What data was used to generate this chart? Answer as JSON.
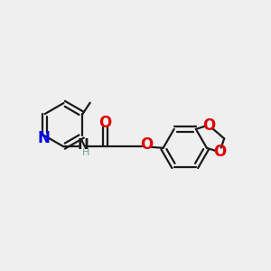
{
  "bg_color": "#efefef",
  "bond_color": "#1a1a1a",
  "N_color": "#0000ee",
  "O_color": "#dd0000",
  "H_color": "#7a9e9f",
  "line_width": 1.6,
  "font_size": 11,
  "figsize": [
    3.0,
    3.0
  ],
  "dpi": 100,
  "xlim": [
    0,
    10
  ],
  "ylim": [
    0,
    10
  ]
}
